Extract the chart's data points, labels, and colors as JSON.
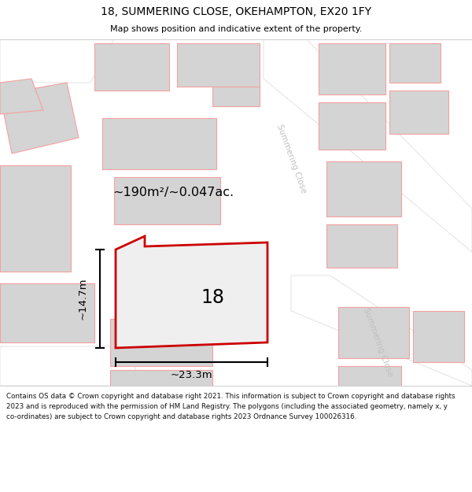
{
  "title": "18, SUMMERING CLOSE, OKEHAMPTON, EX20 1FY",
  "subtitle": "Map shows position and indicative extent of the property.",
  "footer": "Contains OS data © Crown copyright and database right 2021. This information is subject to Crown copyright and database rights 2023 and is reproduced with the permission of\nHM Land Registry. The polygons (including the associated geometry, namely x, y co-ordinates) are subject to Crown copyright and database rights 2023 Ordnance Survey\n100026316.",
  "area_label": "~190m²/~0.047ac.",
  "width_label": "~23.3m",
  "height_label": "~14.7m",
  "number_label": "18",
  "map_bg": "#f7f7f7",
  "building_color": "#d4d4d4",
  "property_fill": "#efefef",
  "property_edge": "#cc0000",
  "other_edge": "#f5a0a0",
  "road_label_color": "#c0c0c0",
  "title_color": "#000000",
  "road_band_color": "#ebebeb"
}
